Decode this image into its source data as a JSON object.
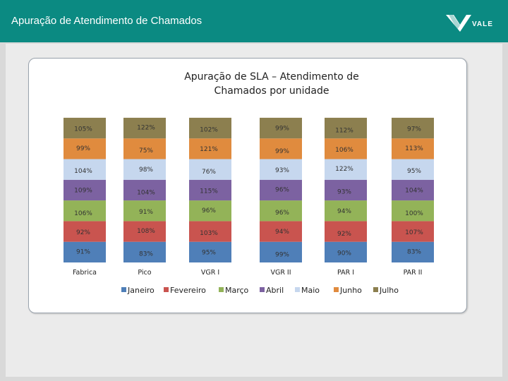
{
  "header": {
    "title": "Apuração de Atendimento de Chamados",
    "logo_text": "VALE"
  },
  "colors": {
    "header_bg": "#0b8a82",
    "Janeiro": "#4f7fb8",
    "Fevereiro": "#c9544f",
    "Março": "#93b358",
    "Abril": "#7c62a1",
    "Maio": "#c6d7ee",
    "Junho": "#e08b3e",
    "Julho": "#8c7f4f"
  },
  "chart_data": {
    "type": "bar",
    "stacked": true,
    "title": "Apuração de SLA – Atendimento de Chamados por unidade",
    "title_lines": [
      "Apuração de SLA – Atendimento de",
      "Chamados por unidade"
    ],
    "categories": [
      "Fabrica",
      "Pico",
      "VGR I",
      "VGR II",
      "PAR I",
      "PAR II"
    ],
    "legend_position": "bottom",
    "series": [
      {
        "name": "Janeiro",
        "values": [
          91,
          83,
          95,
          99,
          90,
          83
        ]
      },
      {
        "name": "Fevereiro",
        "values": [
          92,
          108,
          103,
          94,
          92,
          107
        ]
      },
      {
        "name": "Março",
        "values": [
          106,
          91,
          96,
          96,
          94,
          100
        ]
      },
      {
        "name": "Abril",
        "values": [
          109,
          104,
          115,
          96,
          93,
          104
        ]
      },
      {
        "name": "Maio",
        "values": [
          104,
          98,
          76,
          93,
          122,
          95
        ]
      },
      {
        "name": "Junho",
        "values": [
          99,
          75,
          121,
          99,
          106,
          113
        ]
      },
      {
        "name": "Julho",
        "values": [
          105,
          122,
          102,
          99,
          112,
          97
        ]
      }
    ],
    "labels": [
      [
        "91%",
        "83%",
        "95%",
        "99%",
        "90%",
        "83%"
      ],
      [
        "92%",
        "108%",
        "103%",
        "94%",
        "92%",
        "107%"
      ],
      [
        "106%",
        "91%",
        "96%",
        "96%",
        "94%",
        "100%"
      ],
      [
        "109%",
        "104%",
        "115%",
        "96%",
        "93%",
        "104%"
      ],
      [
        "104%",
        "98%",
        "76%",
        "93%",
        "122%",
        "95%"
      ],
      [
        "99%",
        "75%",
        "121%",
        "99%",
        "106%",
        "113%"
      ],
      [
        "105%",
        "122%",
        "102%",
        "99%",
        "112%",
        "97%"
      ]
    ]
  }
}
